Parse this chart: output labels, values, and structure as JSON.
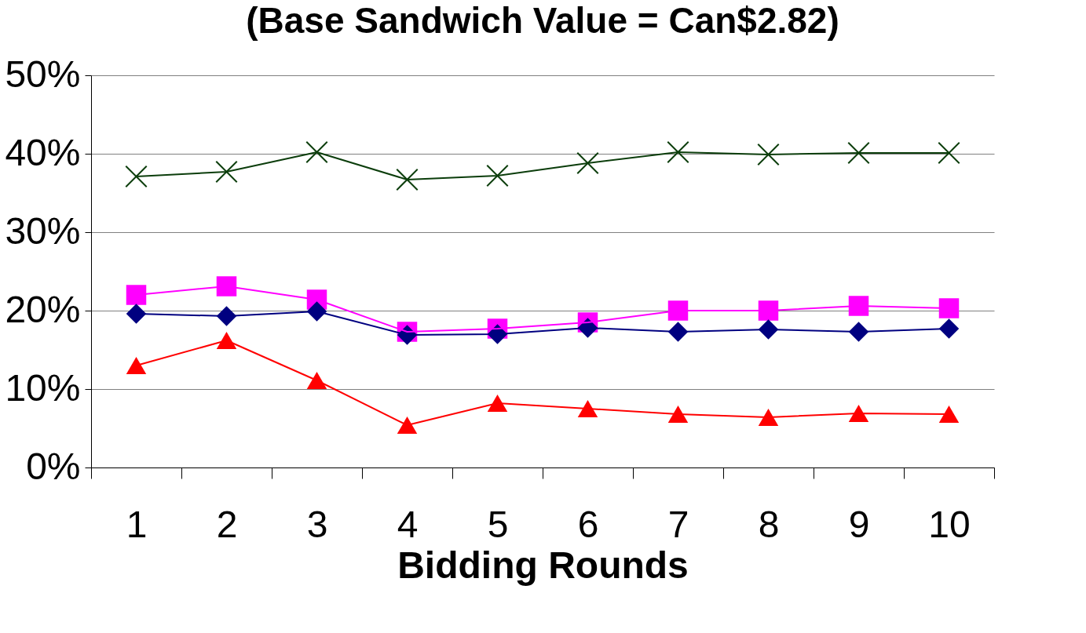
{
  "chart_data": {
    "type": "line",
    "title": "(Base Sandwich Value = Can$2.82)",
    "xlabel": "Bidding Rounds",
    "categories": [
      "1",
      "2",
      "3",
      "4",
      "5",
      "6",
      "7",
      "8",
      "9",
      "10"
    ],
    "series": [
      {
        "color": "#ff00ff",
        "marker": "square",
        "values": [
          22.0,
          23.1,
          21.4,
          17.3,
          17.7,
          18.5,
          20.0,
          20.0,
          20.6,
          20.3
        ]
      },
      {
        "color": "#000080",
        "marker": "diamond",
        "values": [
          19.6,
          19.3,
          19.9,
          16.9,
          17.0,
          17.8,
          17.3,
          17.6,
          17.3,
          17.7
        ]
      },
      {
        "color": "#ff0000",
        "marker": "triangle",
        "values": [
          13.0,
          16.2,
          11.1,
          5.4,
          8.2,
          7.5,
          6.8,
          6.4,
          6.9,
          6.8
        ]
      },
      {
        "color": "#0b3d0b",
        "marker": "cross",
        "values": [
          37.1,
          37.7,
          40.2,
          36.7,
          37.2,
          38.8,
          40.2,
          39.9,
          40.1,
          40.1
        ]
      }
    ],
    "ylim": [
      0,
      50
    ],
    "yticks": [
      {
        "value": 0,
        "label": "0%"
      },
      {
        "value": 10,
        "label": "10%"
      },
      {
        "value": 20,
        "label": "20%"
      },
      {
        "value": 30,
        "label": "30%"
      },
      {
        "value": 40,
        "label": "40%"
      },
      {
        "value": 50,
        "label": "50%"
      }
    ],
    "grid": "y"
  }
}
